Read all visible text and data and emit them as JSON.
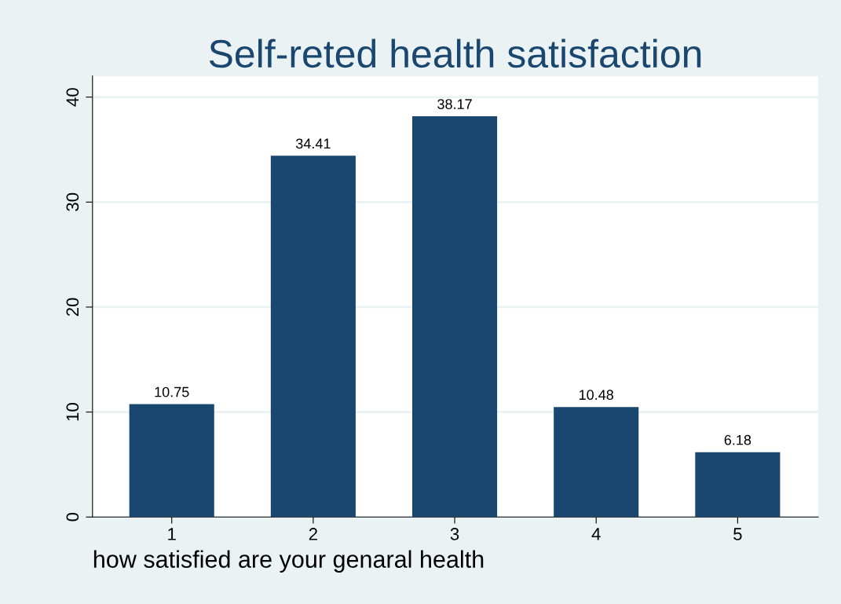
{
  "chart_data": {
    "type": "bar",
    "title": "Self-reted health satisfaction",
    "xlabel": "how satisfied are your genaral health",
    "categories": [
      "1",
      "2",
      "3",
      "4",
      "5"
    ],
    "values": [
      10.75,
      34.41,
      38.17,
      10.48,
      6.18
    ],
    "color": "#1a476f",
    "ylim": [
      0,
      42
    ],
    "yticks": [
      0,
      10,
      20,
      30,
      40
    ],
    "grid": "y",
    "data_labels": true
  }
}
